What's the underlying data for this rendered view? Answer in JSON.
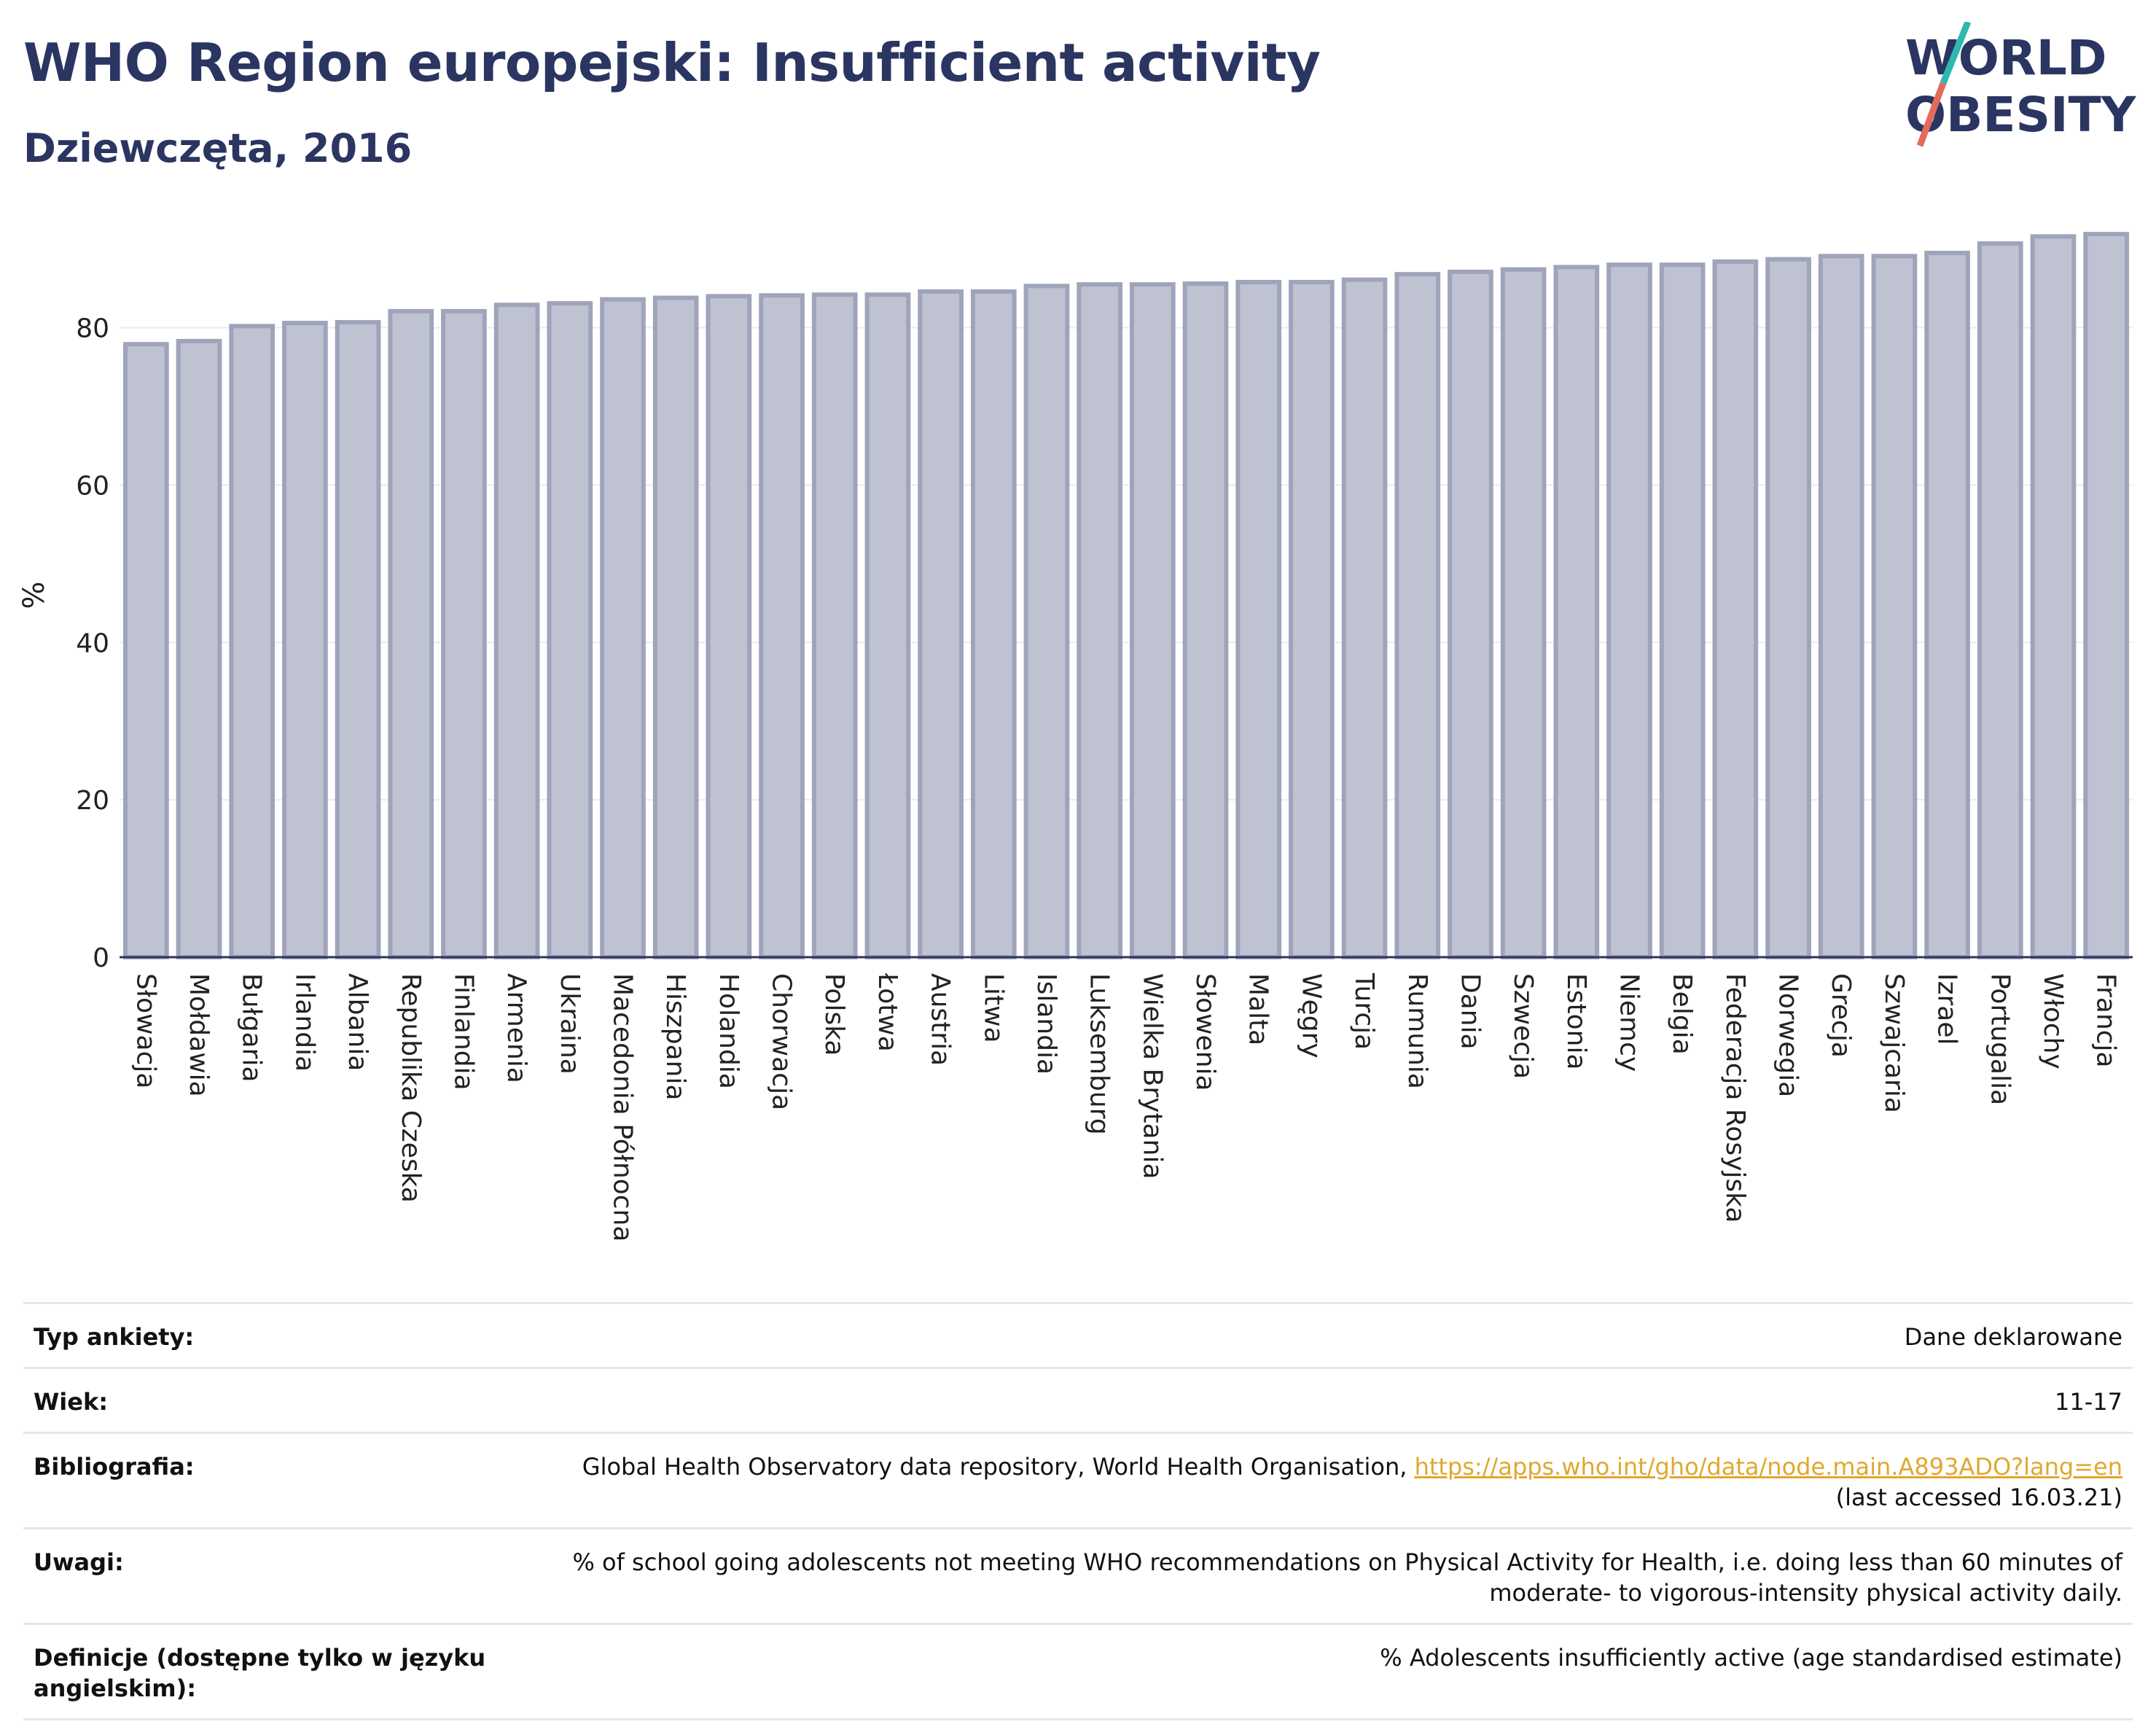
{
  "title": "WHO Region europejski: Insufficient activity",
  "subtitle": "Dziewczęta, 2016",
  "logo": {
    "line1": "WORLD",
    "line2": "OBESITY"
  },
  "colors": {
    "bar_fill": "#bfc2d0",
    "bar_stroke": "#9fa4bb",
    "title": "#2b3561",
    "link": "#e0a82e",
    "logo_teal": "#2fb8b0",
    "logo_red": "#e46b5a"
  },
  "chart_data": {
    "type": "bar",
    "title": "WHO Region europejski: Insufficient activity",
    "subtitle": "Dziewczęta, 2016",
    "xlabel": "",
    "ylabel": "%",
    "ylim": [
      0,
      92
    ],
    "yticks": [
      0,
      20,
      40,
      60,
      80
    ],
    "grid": true,
    "categories": [
      "Słowacja",
      "Mołdawia",
      "Bułgaria",
      "Irlandia",
      "Albania",
      "Republika Czeska",
      "Finlandia",
      "Armenia",
      "Ukraina",
      "Macedonia Północna",
      "Hiszpania",
      "Holandia",
      "Chorwacja",
      "Polska",
      "Łotwa",
      "Austria",
      "Litwa",
      "Islandia",
      "Luksemburg",
      "Wielka Brytania",
      "Słowenia",
      "Malta",
      "Węgry",
      "Turcja",
      "Rumunia",
      "Dania",
      "Szwecja",
      "Estonia",
      "Niemcy",
      "Belgia",
      "Federacja Rosyjska",
      "Norwegia",
      "Grecja",
      "Szwajcaria",
      "Izrael",
      "Portugalia",
      "Włochy",
      "Francja"
    ],
    "values": [
      77.9,
      78.3,
      80.2,
      80.6,
      80.7,
      82.1,
      82.1,
      82.9,
      83.1,
      83.6,
      83.8,
      84.0,
      84.1,
      84.2,
      84.2,
      84.6,
      84.6,
      85.3,
      85.5,
      85.5,
      85.6,
      85.8,
      85.8,
      86.1,
      86.8,
      87.1,
      87.4,
      87.7,
      88.0,
      88.0,
      88.4,
      88.7,
      89.1,
      89.1,
      89.5,
      90.7,
      91.6,
      91.9
    ]
  },
  "info": [
    {
      "key": "Typ ankiety:",
      "value": "Dane deklarowane"
    },
    {
      "key": "Wiek:",
      "value": "11-17"
    },
    {
      "key": "Bibliografia:",
      "value_prefix": "Global Health Observatory data repository, World Health Organisation, ",
      "link": "https://apps.who.int/gho/data/node.main.A893ADO?lang=en",
      "value_suffix": "(last accessed 16.03.21)"
    },
    {
      "key": "Uwagi:",
      "value_line1": "% of school going adolescents not meeting WHO recommendations on Physical Activity for Health, i.e. doing less than 60 minutes of",
      "value_line2": "moderate- to vigorous-intensity physical activity daily."
    },
    {
      "key": "Definicje (dostępne tylko w języku angielskim):",
      "value": "% Adolescents insufficiently active (age standardised estimate)"
    }
  ]
}
